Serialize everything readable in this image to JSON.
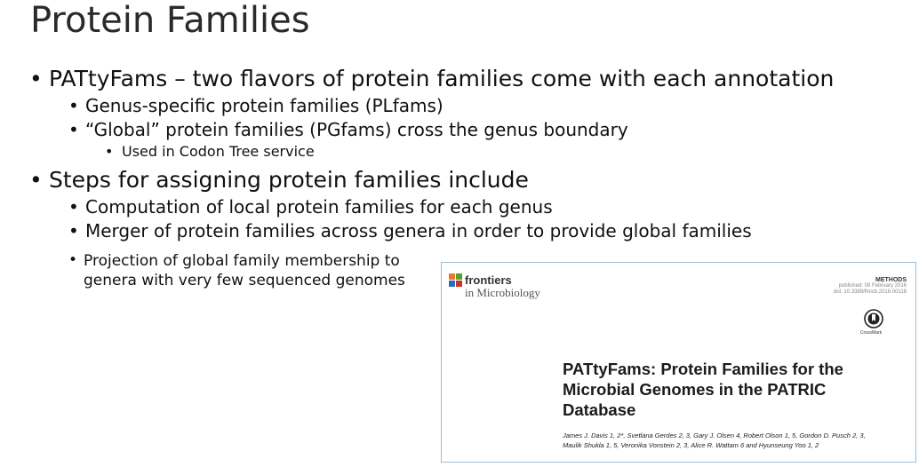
{
  "slide": {
    "title": "Protein Families",
    "bullets": {
      "b1": "PATtyFams – two flavors of protein families come with each annotation",
      "b1a": "Genus-specific protein families (PLfams)",
      "b1b": "“Global” protein families (PGfams) cross the genus boundary",
      "b1b_i": "Used in Codon Tree service",
      "b2": "Steps for assigning protein families include",
      "b2a": "Computation of local protein families for each genus",
      "b2b": "Merger of protein families across genera in order to provide global families",
      "b2c_line1": "Projection of global family membership to",
      "b2c_line2": "genera with very few sequenced genomes"
    },
    "bullet_glyph": "•"
  },
  "paper": {
    "journal_name": "frontiers",
    "journal_sub": "in Microbiology",
    "article_type": "METHODS",
    "published": "published: 08 February 2016",
    "doi": "doi: 10.3389/fmicb.2016.00118",
    "crossmark_label": "CrossMark",
    "title": "PATtyFams: Protein Families for the Microbial Genomes in the PATRIC Database",
    "authors": "James J. Davis 1, 2*, Svetlana Gerdes 2, 3, Gary J. Olsen 4, Robert Olson 1, 5, Gordon D. Pusch 2, 3, Maulik Shukla 1, 5, Veronika Vonstein 2, 3, Alice R. Wattam 6 and Hyunseung Yoo 1, 2"
  },
  "colors": {
    "frame_border": "#9cbfd8",
    "logo_orange": "#e8792b",
    "logo_green": "#5aa02c",
    "logo_blue": "#2d6db5",
    "logo_red": "#c8342a"
  }
}
